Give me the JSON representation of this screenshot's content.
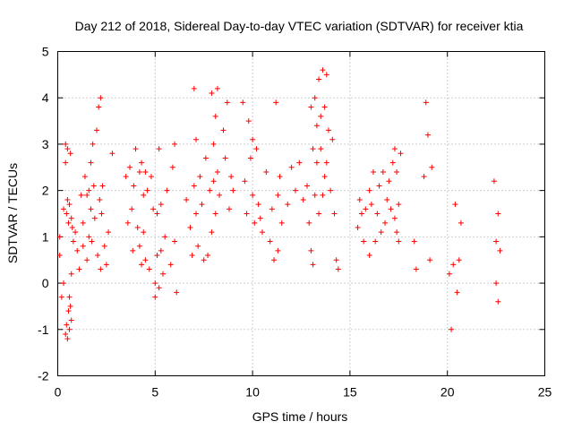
{
  "chart_data": {
    "type": "scatter",
    "title": "Day 212 of 2018, Sidereal Day-to-day VTEC variation (SDTVAR) for receiver ktia",
    "xlabel": "GPS time / hours",
    "ylabel": "SDTVAR / TECUs",
    "xlim": [
      0,
      25
    ],
    "ylim": [
      -2,
      5
    ],
    "xticks": [
      "0",
      "5",
      "10",
      "15",
      "20",
      "25"
    ],
    "yticks": [
      "-2",
      "-1",
      "0",
      "1",
      "2",
      "3",
      "4",
      "5"
    ],
    "grid": true,
    "marker": "plus",
    "color": "#ff0000",
    "x": [
      0.1,
      0.1,
      0.2,
      0.3,
      0.3,
      0.4,
      0.4,
      0.4,
      0.45,
      0.45,
      0.5,
      0.5,
      0.5,
      0.55,
      0.55,
      0.6,
      0.6,
      0.6,
      0.65,
      0.65,
      0.7,
      0.7,
      0.7,
      0.75,
      0.8,
      0.9,
      1.0,
      1.1,
      1.2,
      1.3,
      1.3,
      1.4,
      1.5,
      1.5,
      1.6,
      1.6,
      1.7,
      1.7,
      1.75,
      1.8,
      1.85,
      1.9,
      2.0,
      2.05,
      2.1,
      2.15,
      2.2,
      2.2,
      2.25,
      2.3,
      2.4,
      2.5,
      2.6,
      2.8,
      3.5,
      3.6,
      3.7,
      3.8,
      3.85,
      3.9,
      4.0,
      4.1,
      4.2,
      4.2,
      4.3,
      4.3,
      4.4,
      4.4,
      4.5,
      4.5,
      4.6,
      4.7,
      4.8,
      4.9,
      5.0,
      5.0,
      5.1,
      5.1,
      5.2,
      5.2,
      5.3,
      5.3,
      5.4,
      5.5,
      5.6,
      5.8,
      5.9,
      6.0,
      6.0,
      6.1,
      6.6,
      6.8,
      6.9,
      7.0,
      7.0,
      7.1,
      7.1,
      7.2,
      7.3,
      7.4,
      7.5,
      7.6,
      7.7,
      7.8,
      7.9,
      7.9,
      8.0,
      8.0,
      8.1,
      8.1,
      8.2,
      8.2,
      8.3,
      8.5,
      8.6,
      8.7,
      8.8,
      8.9,
      9.0,
      9.5,
      9.6,
      9.7,
      9.8,
      9.9,
      10.0,
      10.0,
      10.1,
      10.2,
      10.3,
      10.4,
      10.5,
      10.7,
      10.9,
      11.0,
      11.1,
      11.2,
      11.3,
      11.3,
      11.4,
      11.5,
      11.8,
      12.0,
      12.2,
      12.4,
      12.6,
      12.8,
      12.9,
      13.0,
      13.0,
      13.1,
      13.1,
      13.2,
      13.2,
      13.3,
      13.3,
      13.4,
      13.4,
      13.5,
      13.5,
      13.6,
      13.6,
      13.7,
      13.7,
      13.8,
      13.8,
      13.9,
      14.0,
      14.1,
      14.2,
      14.3,
      14.4,
      15.4,
      15.5,
      15.6,
      15.7,
      15.8,
      16.0,
      16.0,
      16.1,
      16.2,
      16.3,
      16.4,
      16.5,
      16.6,
      16.7,
      16.8,
      16.9,
      17.0,
      17.1,
      17.2,
      17.3,
      17.3,
      17.4,
      17.4,
      17.5,
      17.5,
      17.6,
      18.3,
      18.4,
      18.8,
      18.9,
      19.0,
      19.1,
      19.2,
      20.1,
      20.2,
      20.3,
      20.4,
      20.5,
      20.6,
      20.7,
      22.4,
      22.5,
      22.5,
      22.6,
      22.6,
      22.7
    ],
    "y": [
      1.0,
      0.6,
      -0.3,
      0.0,
      1.6,
      3.0,
      2.6,
      -1.1,
      1.5,
      -0.9,
      -1.2,
      1.8,
      2.9,
      -0.6,
      1.3,
      -1.0,
      -0.3,
      1.7,
      -0.5,
      2.8,
      1.4,
      -0.8,
      0.2,
      1.2,
      0.9,
      1.1,
      0.7,
      0.3,
      1.9,
      0.8,
      1.3,
      2.3,
      1.9,
      0.5,
      2.0,
      1.0,
      2.6,
      1.6,
      0.9,
      3.0,
      2.1,
      1.4,
      3.3,
      0.6,
      3.8,
      1.8,
      4.0,
      0.3,
      1.5,
      2.1,
      0.8,
      0.4,
      1.1,
      2.8,
      2.3,
      1.3,
      2.5,
      1.6,
      0.7,
      2.1,
      2.9,
      1.2,
      2.4,
      0.8,
      2.6,
      0.4,
      1.9,
      1.1,
      2.4,
      0.5,
      2.0,
      0.3,
      2.3,
      1.6,
      0.0,
      -0.3,
      1.5,
      0.6,
      2.9,
      -0.1,
      1.7,
      0.7,
      0.2,
      1.0,
      2.0,
      0.4,
      2.5,
      3.0,
      0.9,
      -0.2,
      1.8,
      1.2,
      0.6,
      4.2,
      2.1,
      3.1,
      1.5,
      0.8,
      2.3,
      1.7,
      0.5,
      2.7,
      0.6,
      2.0,
      4.1,
      1.1,
      3.0,
      2.2,
      3.6,
      1.5,
      4.2,
      2.4,
      1.9,
      3.3,
      2.7,
      3.9,
      1.6,
      2.3,
      2.0,
      3.9,
      2.2,
      1.5,
      3.5,
      2.7,
      1.9,
      3.1,
      1.3,
      2.9,
      1.7,
      1.4,
      1.1,
      2.4,
      0.9,
      1.6,
      0.5,
      3.9,
      1.9,
      0.7,
      2.3,
      1.3,
      1.7,
      2.5,
      2.0,
      2.6,
      1.8,
      2.1,
      1.3,
      3.8,
      0.7,
      2.9,
      0.4,
      4.0,
      1.9,
      3.4,
      2.6,
      4.4,
      1.5,
      3.6,
      2.9,
      4.6,
      1.9,
      3.8,
      2.3,
      4.5,
      2.6,
      3.3,
      2.0,
      3.1,
      1.5,
      0.5,
      0.3,
      1.2,
      1.8,
      1.5,
      0.9,
      1.6,
      2.0,
      0.6,
      1.7,
      2.4,
      0.9,
      1.5,
      2.1,
      1.1,
      2.4,
      1.3,
      1.8,
      2.2,
      1.6,
      2.6,
      1.4,
      2.9,
      1.1,
      2.4,
      0.9,
      1.7,
      2.8,
      0.9,
      0.3,
      2.3,
      3.9,
      3.2,
      0.5,
      2.5,
      0.2,
      -1.0,
      0.4,
      1.7,
      -0.2,
      0.5,
      1.3,
      2.2,
      0.0,
      0.9,
      -0.4,
      1.5,
      0.7
    ]
  }
}
